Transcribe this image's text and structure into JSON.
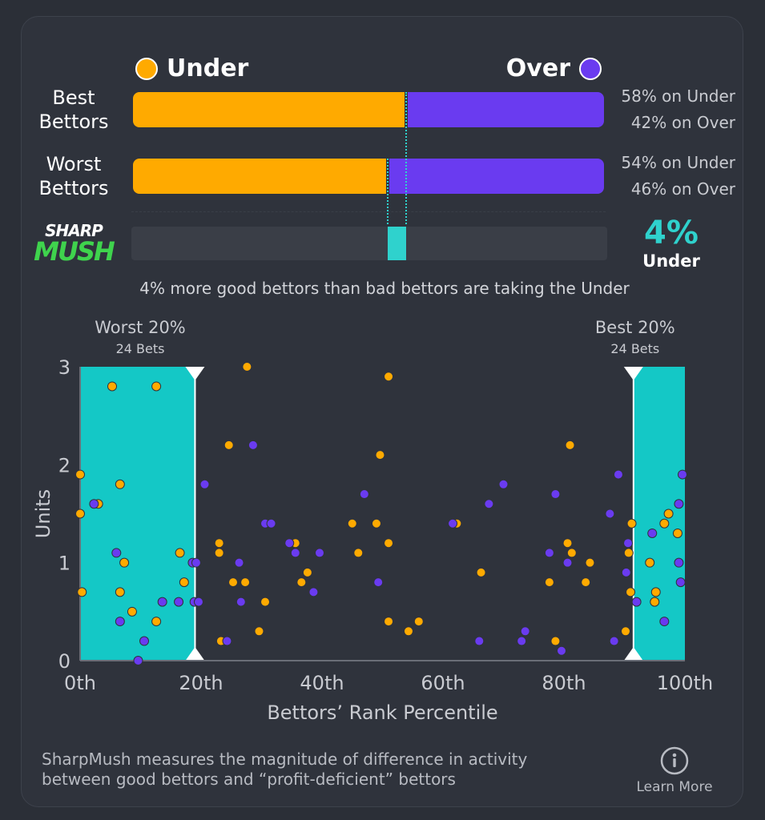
{
  "header": {
    "under_label": "Under",
    "over_label": "Over"
  },
  "colors": {
    "under": "#ffaa00",
    "over": "#6a3bf0",
    "accent": "#2fd2cd"
  },
  "rows": [
    {
      "label": "Best\nBettors",
      "under_pct": 58,
      "over_pct": 42,
      "under_text": "58% on Under",
      "over_text": "42% on Over"
    },
    {
      "label": "Worst\nBettors",
      "under_pct": 54,
      "over_pct": 46,
      "under_text": "54% on Under",
      "over_text": "46% on Over"
    }
  ],
  "logo": {
    "line1": "SHARP",
    "line2": "MUSH"
  },
  "sharpmush": {
    "value": "4%",
    "side": "Under",
    "diff_pct": 4
  },
  "caption": "4% more good bettors than bad bettors are taking the Under",
  "chart_data": {
    "type": "scatter",
    "xlabel": "Bettors’ Rank Percentile",
    "ylabel": "Units",
    "xlim": [
      0,
      100
    ],
    "ylim": [
      0,
      3
    ],
    "x_ticks": [
      "0th",
      "20th",
      "40th",
      "60th",
      "80th",
      "100th"
    ],
    "y_ticks": [
      "0",
      "1",
      "2",
      "3"
    ],
    "zones": [
      {
        "label": "Worst 20%",
        "sublabel": "24 Bets",
        "range": [
          0,
          19
        ]
      },
      {
        "label": "Best 20%",
        "sublabel": "24 Bets",
        "range": [
          91.5,
          100
        ]
      }
    ],
    "series": [
      {
        "name": "Under",
        "points": [
          [
            0,
            1.9
          ],
          [
            0,
            1.5
          ],
          [
            0.3,
            0.7
          ],
          [
            3,
            1.6
          ],
          [
            5.3,
            2.8
          ],
          [
            6.6,
            1.8
          ],
          [
            6.6,
            0.7
          ],
          [
            7.3,
            1.0
          ],
          [
            8.6,
            0.5
          ],
          [
            12.6,
            2.8
          ],
          [
            12.6,
            0.4
          ],
          [
            16.5,
            1.1
          ],
          [
            17.2,
            0.8
          ],
          [
            23,
            1.2
          ],
          [
            23,
            1.1
          ],
          [
            23.3,
            0.2
          ],
          [
            24.6,
            2.2
          ],
          [
            25.3,
            0.8
          ],
          [
            27.3,
            0.8
          ],
          [
            27.6,
            3.0
          ],
          [
            29.6,
            0.3
          ],
          [
            30.6,
            0.6
          ],
          [
            35.6,
            1.2
          ],
          [
            36.6,
            0.8
          ],
          [
            37.6,
            0.9
          ],
          [
            45,
            1.4
          ],
          [
            46,
            1.1
          ],
          [
            49,
            1.4
          ],
          [
            49.6,
            2.1
          ],
          [
            51,
            2.9
          ],
          [
            51,
            1.2
          ],
          [
            51,
            0.4
          ],
          [
            54.3,
            0.3
          ],
          [
            56,
            0.4
          ],
          [
            62.3,
            1.4
          ],
          [
            66.3,
            0.9
          ],
          [
            77.6,
            0.8
          ],
          [
            78.6,
            0.2
          ],
          [
            80.6,
            1.2
          ],
          [
            81,
            2.2
          ],
          [
            81.3,
            1.1
          ],
          [
            83.6,
            0.8
          ],
          [
            84.3,
            1.0
          ],
          [
            90.2,
            0.3
          ],
          [
            90.7,
            1.1
          ],
          [
            91,
            0.7
          ],
          [
            91.2,
            1.4
          ],
          [
            94.2,
            1.0
          ],
          [
            95,
            0.6
          ],
          [
            95.2,
            0.7
          ],
          [
            96.6,
            1.4
          ],
          [
            97.3,
            1.5
          ],
          [
            98.8,
            1.3
          ]
        ]
      },
      {
        "name": "Over",
        "points": [
          [
            2.3,
            1.6
          ],
          [
            6,
            1.1
          ],
          [
            6.6,
            0.4
          ],
          [
            9.6,
            0.0
          ],
          [
            10.6,
            0.2
          ],
          [
            13.6,
            0.6
          ],
          [
            16.3,
            0.6
          ],
          [
            18.6,
            1.0
          ],
          [
            18.9,
            0.6
          ],
          [
            19.2,
            1.0
          ],
          [
            19.6,
            0.6
          ],
          [
            20.6,
            1.8
          ],
          [
            24.3,
            0.2
          ],
          [
            26.3,
            1.0
          ],
          [
            26.6,
            0.6
          ],
          [
            28.6,
            2.2
          ],
          [
            30.6,
            1.4
          ],
          [
            31.6,
            1.4
          ],
          [
            34.6,
            1.2
          ],
          [
            35.6,
            1.1
          ],
          [
            38.6,
            0.7
          ],
          [
            39.6,
            1.1
          ],
          [
            47,
            1.7
          ],
          [
            49.3,
            0.8
          ],
          [
            61.6,
            1.4
          ],
          [
            66,
            0.2
          ],
          [
            67.6,
            1.6
          ],
          [
            70,
            1.8
          ],
          [
            73,
            0.2
          ],
          [
            73.6,
            0.3
          ],
          [
            77.6,
            1.1
          ],
          [
            78.6,
            1.7
          ],
          [
            79.6,
            0.1
          ],
          [
            80.6,
            1.0
          ],
          [
            87.6,
            1.5
          ],
          [
            88.3,
            0.2
          ],
          [
            89,
            1.9
          ],
          [
            90.3,
            0.9
          ],
          [
            90.6,
            1.2
          ],
          [
            92,
            0.6
          ],
          [
            94.6,
            1.3
          ],
          [
            96.6,
            0.4
          ],
          [
            99,
            1.6
          ],
          [
            99,
            1.0
          ],
          [
            99.3,
            0.8
          ],
          [
            99.6,
            1.9
          ]
        ]
      }
    ]
  },
  "footer": {
    "text_line1": "SharpMush measures the magnitude of difference in activity",
    "text_line2": "between good bettors and “profit-deficient” bettors",
    "info_icon": "info-icon",
    "learn_more": "Learn More"
  }
}
